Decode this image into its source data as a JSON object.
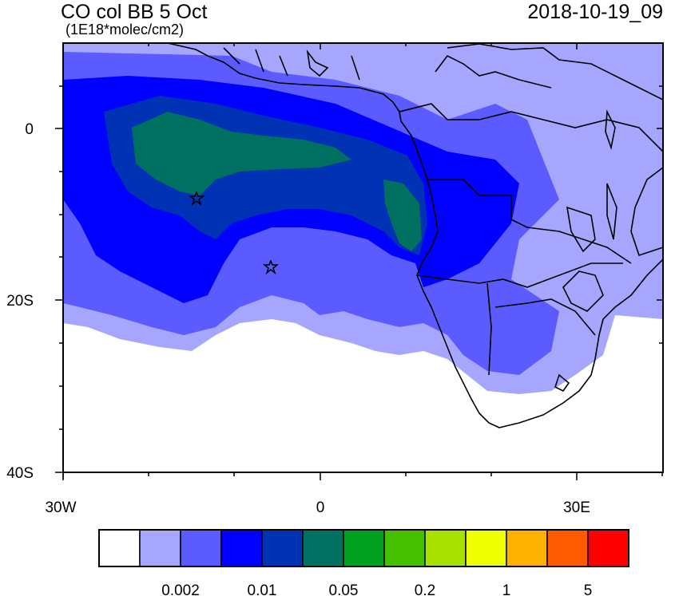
{
  "title": {
    "left": "CO col BB 5 Oct",
    "units": "(1E18*molec/cm2)",
    "right": "2018-10-19_09"
  },
  "axes": {
    "y_ticks": [
      {
        "value": 0,
        "label": "0"
      },
      {
        "value": -20,
        "label": "20S"
      },
      {
        "value": -40,
        "label": "40S"
      }
    ],
    "x_ticks": [
      {
        "value": -30,
        "label": "30W"
      },
      {
        "value": 0,
        "label": "0"
      },
      {
        "value": 30,
        "label": "30E"
      }
    ],
    "lon_range": [
      -30,
      40
    ],
    "lat_range": [
      -40,
      10
    ]
  },
  "stars": [
    {
      "lon": -14.5,
      "lat": -8
    },
    {
      "lon": -5.7,
      "lat": -16
    }
  ],
  "colorbar": {
    "colors": [
      "#ffffff",
      "#a6a6ff",
      "#5b5bff",
      "#0000ff",
      "#0033b3",
      "#007060",
      "#00a020",
      "#44c000",
      "#a8e000",
      "#eeff00",
      "#ffb000",
      "#ff5a00",
      "#ff0000"
    ],
    "labels": [
      "0.002",
      "0.01",
      "0.05",
      "0.2",
      "1",
      "5"
    ]
  },
  "chart_data": {
    "type": "heatmap",
    "title": "CO col BB 5 Oct",
    "subtitle": "(1E18*molec/cm2)",
    "timestamp": "2018-10-19_09",
    "xlabel": "",
    "ylabel": "",
    "xlim": [
      -30,
      40
    ],
    "ylim": [
      -40,
      10
    ],
    "levels_labeled": [
      0.002,
      0.01,
      0.05,
      0.2,
      1,
      5
    ]
  }
}
